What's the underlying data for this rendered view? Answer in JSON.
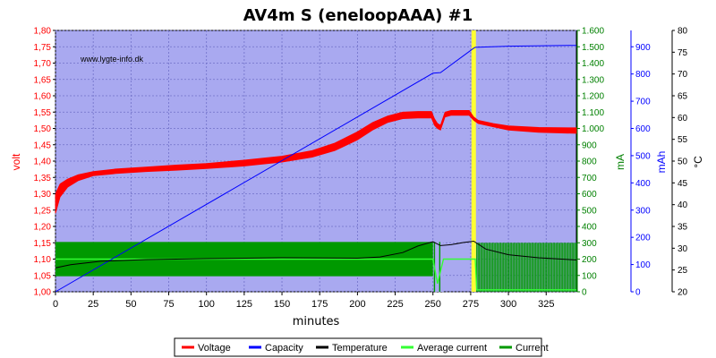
{
  "chart_data": {
    "type": "line",
    "title": "AV4m S (eneloopAAA) #1",
    "watermark": "www.lygte-info.dk",
    "xlabel": "minutes",
    "xlim": [
      0,
      345
    ],
    "x_ticks": [
      "0",
      "25",
      "50",
      "75",
      "100",
      "125",
      "150",
      "175",
      "200",
      "225",
      "250",
      "275",
      "300",
      "325"
    ],
    "axes": {
      "volt": {
        "label": "volt",
        "color": "#ff0000",
        "range": [
          1.0,
          1.8
        ],
        "ticks": [
          "1,00",
          "1,05",
          "1,10",
          "1,15",
          "1,20",
          "1,25",
          "1,30",
          "1,35",
          "1,40",
          "1,45",
          "1,50",
          "1,55",
          "1,60",
          "1,65",
          "1,70",
          "1,75",
          "1,80"
        ]
      },
      "mA": {
        "label": "mA",
        "color": "#008000",
        "range": [
          0,
          1600
        ],
        "ticks": [
          "0",
          "100",
          "200",
          "300",
          "400",
          "500",
          "600",
          "700",
          "800",
          "900",
          "1.000",
          "1.100",
          "1.200",
          "1.300",
          "1.400",
          "1.500",
          "1.600"
        ]
      },
      "mAh": {
        "label": "mAh",
        "color": "#0000ff",
        "range": [
          0,
          960
        ],
        "ticks": [
          "0",
          "100",
          "200",
          "300",
          "400",
          "500",
          "600",
          "700",
          "800",
          "900"
        ]
      },
      "temp": {
        "label": "°C",
        "color": "#000000",
        "range": [
          20,
          80
        ],
        "ticks": [
          "20",
          "25",
          "30",
          "35",
          "40",
          "45",
          "50",
          "55",
          "60",
          "65",
          "70",
          "75",
          "80"
        ]
      }
    },
    "highlight_x": 277,
    "series": [
      {
        "name": "Voltage",
        "color": "#ff0000",
        "axis": "volt",
        "x": [
          0,
          3,
          8,
          15,
          25,
          40,
          60,
          80,
          100,
          125,
          150,
          170,
          185,
          200,
          210,
          220,
          230,
          240,
          249,
          251,
          253,
          255,
          258,
          262,
          268,
          274,
          277,
          280,
          290,
          300,
          320,
          345
        ],
        "lo": [
          1.24,
          1.29,
          1.32,
          1.34,
          1.355,
          1.362,
          1.368,
          1.372,
          1.377,
          1.385,
          1.397,
          1.412,
          1.432,
          1.465,
          1.495,
          1.518,
          1.53,
          1.532,
          1.532,
          1.51,
          1.5,
          1.495,
          1.535,
          1.54,
          1.54,
          1.54,
          1.525,
          1.515,
          1.505,
          1.495,
          1.488,
          1.485
        ],
        "hi": [
          1.3,
          1.33,
          1.345,
          1.358,
          1.368,
          1.376,
          1.382,
          1.388,
          1.393,
          1.403,
          1.415,
          1.432,
          1.455,
          1.49,
          1.518,
          1.538,
          1.55,
          1.552,
          1.552,
          1.53,
          1.515,
          1.51,
          1.55,
          1.555,
          1.555,
          1.555,
          1.535,
          1.525,
          1.515,
          1.508,
          1.503,
          1.502
        ]
      },
      {
        "name": "Capacity",
        "color": "#0000ff",
        "axis": "mAh",
        "x": [
          0,
          250,
          255,
          277,
          278,
          300,
          345
        ],
        "y": [
          0,
          803,
          805,
          895,
          898,
          902,
          905
        ]
      },
      {
        "name": "Temperature",
        "color": "#000000",
        "axis": "temp",
        "x": [
          0,
          10,
          30,
          60,
          100,
          150,
          200,
          215,
          230,
          240,
          250,
          255,
          262,
          270,
          277,
          285,
          300,
          320,
          345
        ],
        "y": [
          25.5,
          26.2,
          27.0,
          27.4,
          27.6,
          27.8,
          27.7,
          28.0,
          29.0,
          30.5,
          31.5,
          30.6,
          30.8,
          31.3,
          31.6,
          29.8,
          28.5,
          27.8,
          27.3
        ]
      },
      {
        "name": "Average current",
        "color": "#33ff33",
        "axis": "mA",
        "x": [
          0,
          250,
          253,
          257,
          278,
          279,
          345
        ],
        "y": [
          200,
          200,
          50,
          200,
          200,
          12,
          12
        ]
      },
      {
        "name": "Current",
        "color": "#009900",
        "axis": "mA",
        "band_x": [
          0,
          250
        ],
        "band_lo": 95,
        "band_hi": 305,
        "after_x": [
          279,
          345
        ],
        "after_lo": 0,
        "after_hi": 300
      }
    ],
    "legend": {
      "placement": "bottom",
      "entries": [
        "Voltage",
        "Capacity",
        "Temperature",
        "Average current",
        "Current"
      ]
    }
  }
}
